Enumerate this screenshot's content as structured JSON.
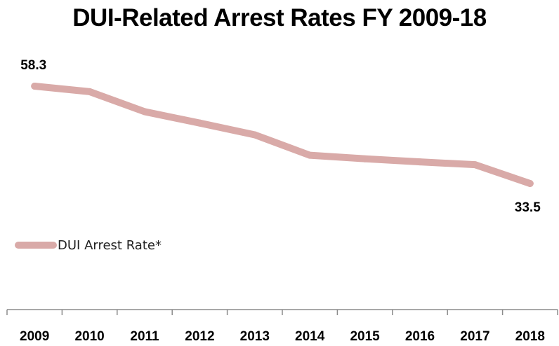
{
  "chart_data": {
    "type": "line",
    "title": "DUI-Related Arrest Rates FY 2009-18",
    "xlabel": "",
    "ylabel": "",
    "categories": [
      "2009",
      "2010",
      "2011",
      "2012",
      "2013",
      "2014",
      "2015",
      "2016",
      "2017",
      "2018"
    ],
    "series": [
      {
        "name": "DUI Arrest Rate*",
        "values": [
          58.3,
          56.9,
          51.8,
          48.9,
          45.9,
          40.7,
          39.8,
          39.0,
          38.3,
          33.5
        ],
        "color": "#d9aaa8"
      }
    ],
    "data_labels": [
      {
        "index": 0,
        "text": "58.3",
        "position": "above"
      },
      {
        "index": 9,
        "text": "33.5",
        "position": "below"
      }
    ],
    "legend": {
      "placement": "left"
    },
    "grid": false
  }
}
